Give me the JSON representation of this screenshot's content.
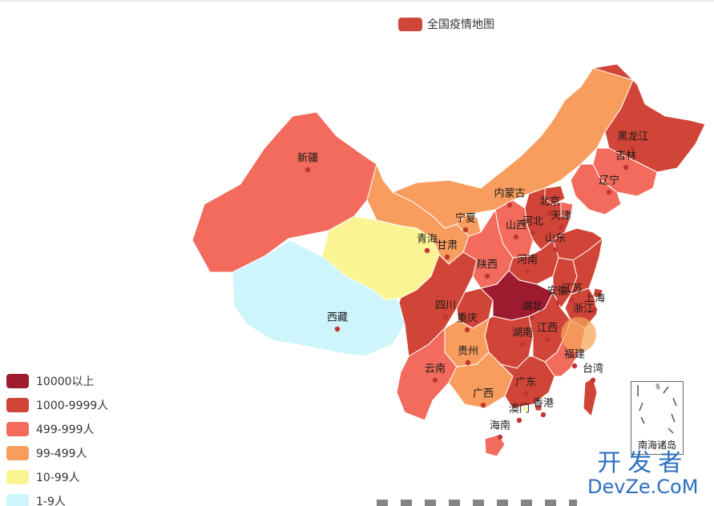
{
  "legend": {
    "label": "全国疫情地图",
    "color": "#d0473a"
  },
  "visual_map": [
    {
      "label": "10000以上",
      "color": "#9e1a2e"
    },
    {
      "label": "1000-9999人",
      "color": "#d04537"
    },
    {
      "label": "499-999人",
      "color": "#f26b5c"
    },
    {
      "label": "99-499人",
      "color": "#f99d5f"
    },
    {
      "label": "10-99人",
      "color": "#fbf492"
    },
    {
      "label": "1-9人",
      "color": "#cdf5fb"
    }
  ],
  "provinces": [
    {
      "name": "新疆",
      "level": 2
    },
    {
      "name": "西藏",
      "level": 5
    },
    {
      "name": "青海",
      "level": 4
    },
    {
      "name": "甘肃",
      "level": 3
    },
    {
      "name": "宁夏",
      "level": 3
    },
    {
      "name": "内蒙古",
      "level": 3
    },
    {
      "name": "黑龙江",
      "level": 1
    },
    {
      "name": "吉林",
      "level": 2
    },
    {
      "name": "辽宁",
      "level": 2
    },
    {
      "name": "北京",
      "level": 1
    },
    {
      "name": "天津",
      "level": 2
    },
    {
      "name": "河北",
      "level": 1
    },
    {
      "name": "山西",
      "level": 2
    },
    {
      "name": "山东",
      "level": 1
    },
    {
      "name": "河南",
      "level": 1
    },
    {
      "name": "陕西",
      "level": 2
    },
    {
      "name": "四川",
      "level": 1
    },
    {
      "name": "重庆",
      "level": 1
    },
    {
      "name": "湖北",
      "level": 0
    },
    {
      "name": "安徽",
      "level": 1
    },
    {
      "name": "江苏",
      "level": 1
    },
    {
      "name": "上海",
      "level": 1
    },
    {
      "name": "浙江",
      "level": 1
    },
    {
      "name": "湖南",
      "level": 1
    },
    {
      "name": "江西",
      "level": 1
    },
    {
      "name": "贵州",
      "level": 3
    },
    {
      "name": "云南",
      "level": 2
    },
    {
      "name": "广西",
      "level": 3
    },
    {
      "name": "广东",
      "level": 1
    },
    {
      "name": "福建",
      "level": 2
    },
    {
      "name": "台湾",
      "level": 1
    },
    {
      "name": "海南",
      "level": 2
    },
    {
      "name": "澳门",
      "level": 4
    },
    {
      "name": "香港",
      "level": 1
    }
  ],
  "inset_label": "南海诸岛",
  "watermark": {
    "cn": "开发者",
    "en": "DevZe.CoM"
  }
}
